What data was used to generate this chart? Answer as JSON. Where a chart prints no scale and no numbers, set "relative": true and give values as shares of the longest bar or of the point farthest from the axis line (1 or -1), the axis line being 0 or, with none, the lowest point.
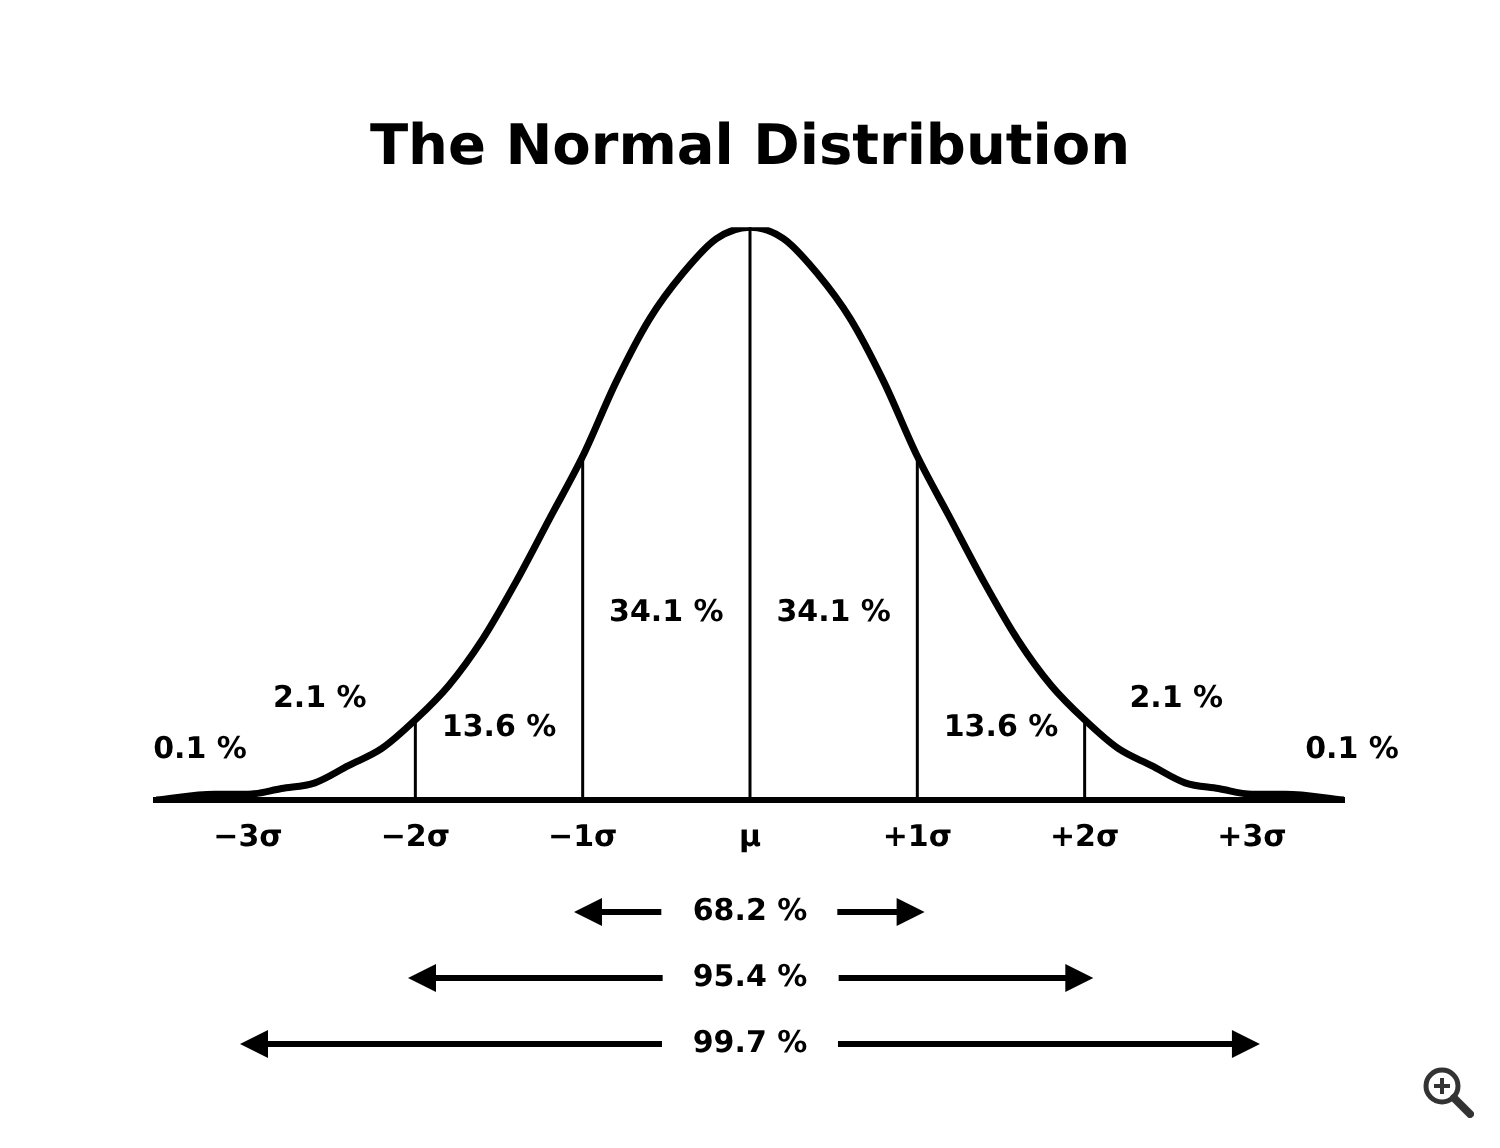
{
  "chart_data": {
    "type": "line",
    "title": "The Normal Distribution",
    "relative": true,
    "x": [
      -3.55,
      -3.2,
      -3.0,
      -2.8,
      -2.6,
      -2.4,
      -2.2,
      -2.0,
      -1.8,
      -1.6,
      -1.4,
      -1.2,
      -1.0,
      -0.8,
      -0.6,
      -0.4,
      -0.2,
      0,
      0.2,
      0.4,
      0.6,
      0.8,
      1.0,
      1.2,
      1.4,
      1.6,
      1.8,
      2.0,
      2.2,
      2.4,
      2.6,
      2.8,
      3.0,
      3.2,
      3.55
    ],
    "series": [
      {
        "color": "#000000",
        "values": [
          0.0,
          0.01,
          0.01,
          0.02,
          0.03,
          0.06,
          0.09,
          0.14,
          0.2,
          0.28,
          0.38,
          0.49,
          0.6,
          0.73,
          0.84,
          0.92,
          0.98,
          1,
          0.98,
          0.92,
          0.84,
          0.73,
          0.6,
          0.49,
          0.38,
          0.28,
          0.2,
          0.14,
          0.09,
          0.06,
          0.03,
          0.02,
          0.01,
          0.01,
          0.0
        ]
      }
    ],
    "xlim": [
      -3.55,
      3.55
    ],
    "xticks": [
      {
        "value": -3,
        "label": "−3σ"
      },
      {
        "value": -2,
        "label": "−2σ"
      },
      {
        "value": -1,
        "label": "−1σ"
      },
      {
        "value": 0,
        "label": "μ"
      },
      {
        "value": 1,
        "label": "+1σ"
      },
      {
        "value": 2,
        "label": "+2σ"
      },
      {
        "value": 3,
        "label": "+3σ"
      }
    ],
    "ref_lines": [
      {
        "axis": "x",
        "value": -2
      },
      {
        "axis": "x",
        "value": -1
      },
      {
        "axis": "x",
        "value": 0
      },
      {
        "axis": "x",
        "value": 1
      },
      {
        "axis": "x",
        "value": 2
      }
    ],
    "grid": false,
    "legend": false,
    "marker": "none",
    "line_style": "solid",
    "annotations": [
      "0.1 %",
      "2.1 %",
      "13.6 %",
      "34.1 %",
      "34.1 %",
      "13.6 %",
      "2.1 %",
      "0.1 %",
      "68.2 %",
      "95.4 %",
      "99.7 %"
    ]
  }
}
